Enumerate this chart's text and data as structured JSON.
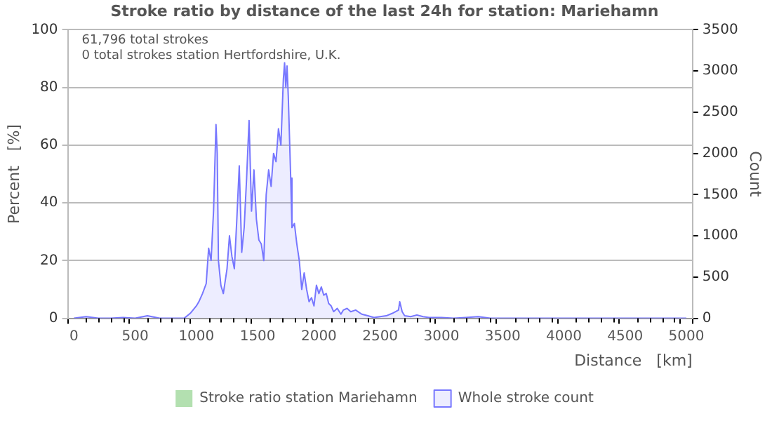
{
  "chart_data": {
    "type": "area",
    "title": "Stroke ratio by distance of the last 24h for station: Mariehamn",
    "xlabel": "Distance   [km]",
    "ylabel": "Percent   [%]",
    "y2label": "Count",
    "annotations": [
      "61,796 total strokes",
      "0 total strokes station Hertfordshire, U.K."
    ],
    "xlim": [
      0,
      5000
    ],
    "xticks": [
      0,
      {
        "value": 100,
        "label": null
      },
      {
        "value": 200,
        "label": null
      },
      {
        "value": 300,
        "label": null
      },
      {
        "value": 400,
        "label": null
      },
      500,
      {
        "value": 600,
        "label": null
      },
      {
        "value": 700,
        "label": null
      },
      {
        "value": 800,
        "label": null
      },
      {
        "value": 900,
        "label": null
      },
      1000,
      {
        "value": 1100,
        "label": null
      },
      {
        "value": 1200,
        "label": null
      },
      {
        "value": 1300,
        "label": null
      },
      {
        "value": 1400,
        "label": null
      },
      1500,
      {
        "value": 1600,
        "label": null
      },
      {
        "value": 1700,
        "label": null
      },
      {
        "value": 1800,
        "label": null
      },
      {
        "value": 1900,
        "label": null
      },
      2000,
      {
        "value": 2100,
        "label": null
      },
      {
        "value": 2200,
        "label": null
      },
      {
        "value": 2300,
        "label": null
      },
      {
        "value": 2400,
        "label": null
      },
      2500,
      {
        "value": 2600,
        "label": null
      },
      {
        "value": 2700,
        "label": null
      },
      {
        "value": 2800,
        "label": null
      },
      {
        "value": 2900,
        "label": null
      },
      3000,
      {
        "value": 3100,
        "label": null
      },
      {
        "value": 3200,
        "label": null
      },
      {
        "value": 3300,
        "label": null
      },
      {
        "value": 3400,
        "label": null
      },
      3500,
      {
        "value": 3600,
        "label": null
      },
      {
        "value": 3700,
        "label": null
      },
      {
        "value": 3800,
        "label": null
      },
      {
        "value": 3900,
        "label": null
      },
      4000,
      {
        "value": 4100,
        "label": null
      },
      {
        "value": 4200,
        "label": null
      },
      {
        "value": 4300,
        "label": null
      },
      {
        "value": 4400,
        "label": null
      },
      4500,
      {
        "value": 4600,
        "label": null
      },
      {
        "value": 4700,
        "label": null
      },
      {
        "value": 4800,
        "label": null
      },
      {
        "value": 4900,
        "label": null
      },
      5000
    ],
    "ylim": [
      0,
      100
    ],
    "yticks": [
      0,
      20,
      40,
      60,
      80,
      100
    ],
    "y2lim": [
      0,
      3500
    ],
    "y2ticks": [
      0,
      500,
      1000,
      1500,
      2000,
      2500,
      3000,
      3500
    ],
    "grid": "y",
    "legend": "bottom",
    "marker": "none",
    "series": [
      {
        "name": "Stroke ratio station Mariehamn",
        "type": "bar",
        "color": "#b3e0b0"
      },
      {
        "name": "Whole stroke count",
        "axis": "y2",
        "color": "#7777ff",
        "x": [
          0,
          100,
          200,
          300,
          400,
          500,
          600,
          700,
          800,
          900,
          950,
          1000,
          1020,
          1050,
          1080,
          1100,
          1120,
          1140,
          1160,
          1170,
          1180,
          1200,
          1220,
          1250,
          1270,
          1290,
          1310,
          1330,
          1350,
          1370,
          1390,
          1410,
          1430,
          1450,
          1470,
          1490,
          1510,
          1530,
          1550,
          1570,
          1590,
          1610,
          1630,
          1650,
          1670,
          1690,
          1710,
          1720,
          1730,
          1740,
          1750,
          1770,
          1780,
          1800,
          1820,
          1840,
          1860,
          1880,
          1900,
          1920,
          1940,
          1960,
          1980,
          2000,
          2020,
          2040,
          2060,
          2080,
          2100,
          2120,
          2150,
          2180,
          2200,
          2230,
          2260,
          2300,
          2350,
          2400,
          2450,
          2500,
          2550,
          2600,
          2650,
          2660,
          2680,
          2700,
          2750,
          2800,
          2850,
          2900,
          3000,
          3100,
          3200,
          3300,
          3400,
          3500,
          5000
        ],
        "values": [
          0,
          20,
          0,
          0,
          10,
          0,
          30,
          0,
          0,
          0,
          60,
          150,
          200,
          300,
          420,
          850,
          700,
          1300,
          2350,
          2000,
          700,
          400,
          300,
          600,
          1000,
          750,
          600,
          1200,
          1850,
          800,
          1100,
          1700,
          2400,
          1300,
          1800,
          1200,
          950,
          900,
          700,
          1500,
          1800,
          1600,
          2000,
          1900,
          2300,
          2100,
          2900,
          3100,
          2800,
          3060,
          2700,
          1700,
          1100,
          1150,
          900,
          700,
          350,
          550,
          350,
          200,
          250,
          150,
          400,
          300,
          380,
          280,
          300,
          180,
          150,
          80,
          120,
          50,
          100,
          120,
          80,
          100,
          50,
          30,
          10,
          20,
          30,
          60,
          100,
          200,
          80,
          30,
          20,
          40,
          20,
          10,
          10,
          0,
          10,
          20,
          0,
          0,
          0
        ]
      }
    ]
  }
}
